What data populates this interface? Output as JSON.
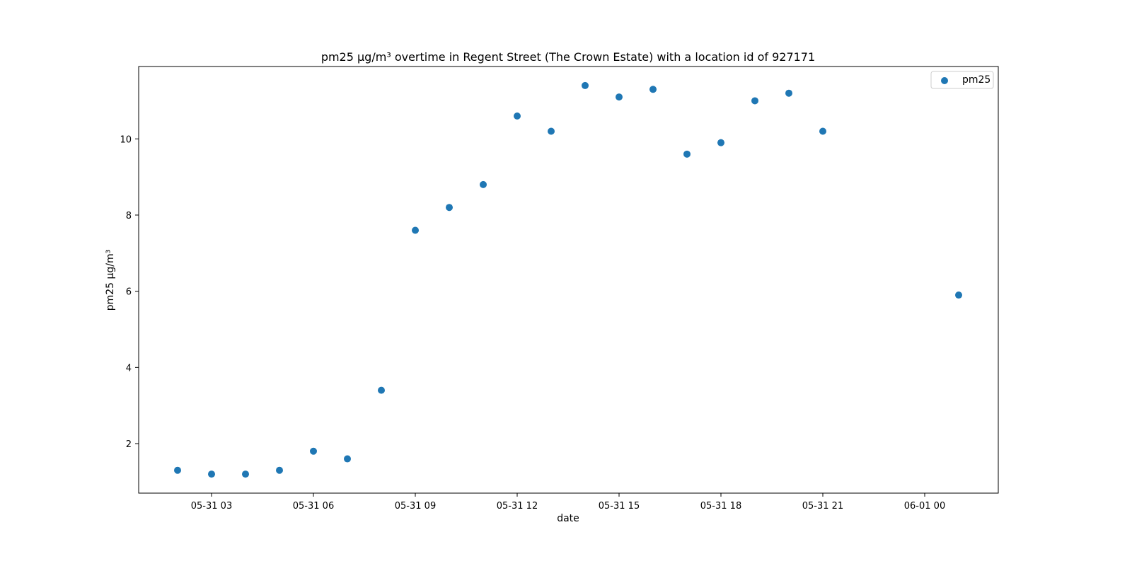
{
  "chart_data": {
    "type": "scatter",
    "title": "pm25 µg/m³ overtime in Regent Street (The Crown Estate) with a location id of 927171",
    "xlabel": "date",
    "ylabel": "pm25 µg/m³",
    "x_ticks": [
      "05-31 03",
      "05-31 06",
      "05-31 09",
      "05-31 12",
      "05-31 15",
      "05-31 18",
      "05-31 21",
      "06-01 00"
    ],
    "x_tick_values": [
      "05-31 03:00",
      "05-31 06:00",
      "05-31 09:00",
      "05-31 12:00",
      "05-31 15:00",
      "05-31 18:00",
      "05-31 21:00",
      "06-01 00:00"
    ],
    "y_ticks": [
      2,
      4,
      6,
      8,
      10
    ],
    "xlim": [
      "05-31 00:52",
      "06-02 02:08"
    ],
    "ylim": [
      0.7,
      11.9
    ],
    "grid": false,
    "legend_position": "top-right",
    "color": "#1f77b4",
    "series": [
      {
        "name": "pm25",
        "x": [
          "05-31 02:00",
          "05-31 03:00",
          "05-31 04:00",
          "05-31 05:00",
          "05-31 06:00",
          "05-31 07:00",
          "05-31 08:00",
          "05-31 09:00",
          "05-31 10:00",
          "05-31 11:00",
          "05-31 12:00",
          "05-31 13:00",
          "05-31 14:00",
          "05-31 15:00",
          "05-31 16:00",
          "05-31 17:00",
          "05-31 18:00",
          "05-31 19:00",
          "05-31 20:00",
          "05-31 21:00",
          "06-01 01:00"
        ],
        "y": [
          1.3,
          1.2,
          1.2,
          1.3,
          1.8,
          1.6,
          3.4,
          7.6,
          8.2,
          8.8,
          10.6,
          10.2,
          11.4,
          11.1,
          11.3,
          9.6,
          9.9,
          11.0,
          11.2,
          10.2,
          5.9
        ]
      }
    ]
  }
}
